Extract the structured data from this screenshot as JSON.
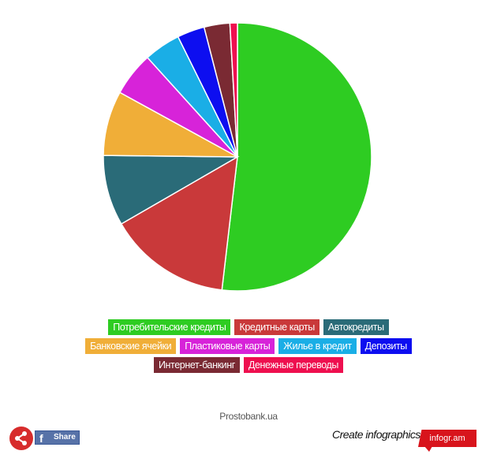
{
  "chart_data": {
    "type": "pie",
    "start": "top",
    "direction": "clockwise",
    "legend_position": "bottom",
    "series": [
      {
        "name": "Потребительские кредиты",
        "value": 51.8,
        "color": "#2ecc22"
      },
      {
        "name": "Кредитные карты",
        "value": 14.8,
        "color": "#c9393a"
      },
      {
        "name": "Автокредиты",
        "value": 8.5,
        "color": "#2a6b78"
      },
      {
        "name": "Банковские ячейки",
        "value": 7.8,
        "color": "#f0ae38"
      },
      {
        "name": "Пластиковые карты",
        "value": 5.3,
        "color": "#d723d9"
      },
      {
        "name": "Жилье в кредит",
        "value": 4.4,
        "color": "#1aaee6"
      },
      {
        "name": "Депозиты",
        "value": 3.3,
        "color": "#0d0ef0"
      },
      {
        "name": "Интернет-банкинг",
        "value": 3.1,
        "color": "#7a2a33"
      },
      {
        "name": "Денежные переводы",
        "value": 0.9,
        "color": "#ee0f4f"
      }
    ]
  },
  "footer": {
    "source": "Prostobank.ua",
    "share_label": "Share",
    "facebook_glyph": "f",
    "create_label": "Create infographics",
    "brand_label": "infogr.am"
  }
}
